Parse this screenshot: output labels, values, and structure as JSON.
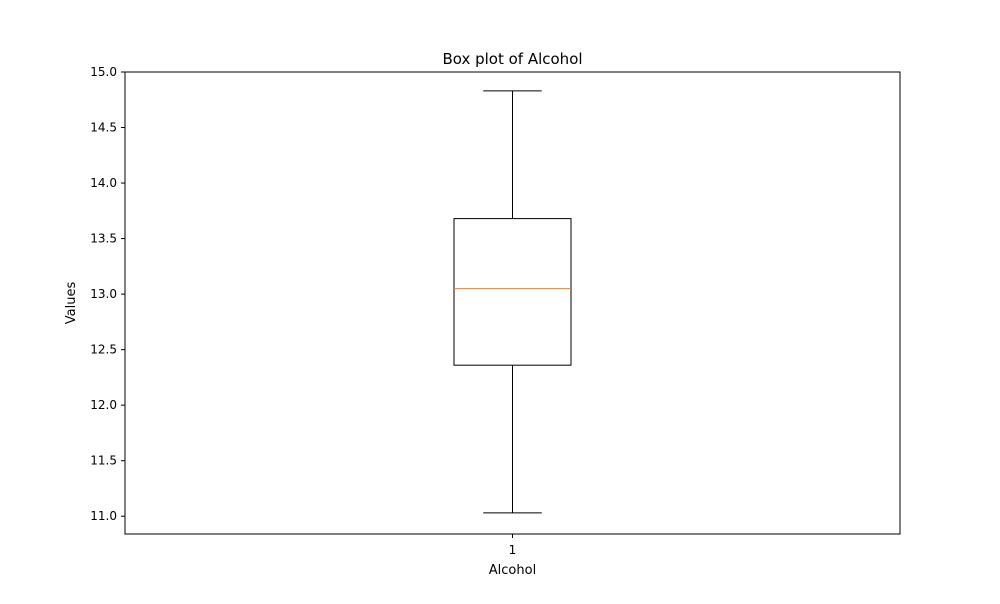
{
  "chart_data": {
    "type": "boxplot",
    "title": "Box plot of Alcohol",
    "xlabel": "Alcohol",
    "ylabel": "Values",
    "categories": [
      "1"
    ],
    "ylim": [
      10.84,
      15.0
    ],
    "yticks": [
      11.0,
      11.5,
      12.0,
      12.5,
      13.0,
      13.5,
      14.0,
      14.5,
      15.0
    ],
    "ytick_labels": [
      "11.0",
      "11.5",
      "12.0",
      "12.5",
      "13.0",
      "13.5",
      "14.0",
      "14.5",
      "15.0"
    ],
    "boxes": [
      {
        "category": "1",
        "whisker_low": 11.03,
        "q1": 12.36,
        "median": 13.05,
        "q3": 13.68,
        "whisker_high": 14.83
      }
    ],
    "grid": false,
    "colors": {
      "box": "#000000",
      "median": "#ff7f0e",
      "whisker": "#000000"
    }
  }
}
